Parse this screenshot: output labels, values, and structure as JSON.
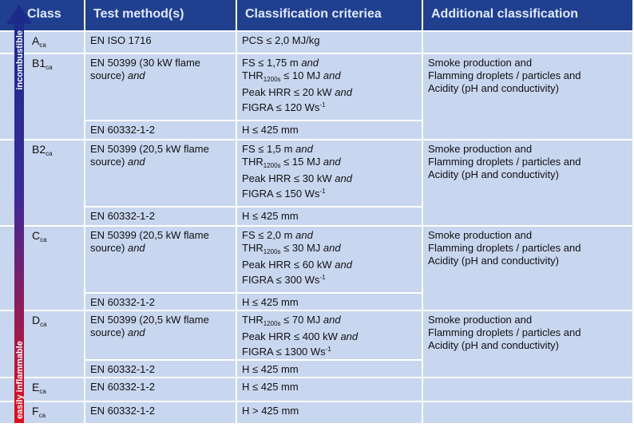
{
  "header": {
    "class": "Class",
    "test_method": "Test method(s)",
    "criteria": "Classification criteriea",
    "additional": "Additional classification"
  },
  "scale": {
    "top": "incombustible",
    "bottom": "easily inflammable"
  },
  "rows": [
    {
      "class": [
        {
          "text": "A"
        },
        {
          "sub": "ca"
        }
      ],
      "tests": [
        {
          "method": [
            [
              {
                "text": "EN ISO 1716"
              }
            ]
          ],
          "criteria": [
            [
              {
                "text": "PCS ≤ 2,0 MJ/kg"
              }
            ]
          ]
        }
      ],
      "additional": []
    },
    {
      "class": [
        {
          "text": "B1"
        },
        {
          "sub": "ca"
        }
      ],
      "tests": [
        {
          "method": [
            [
              {
                "text": "EN 50399 (30 kW flame"
              }
            ],
            [
              {
                "text": "source) "
              },
              {
                "italic": "and"
              }
            ]
          ],
          "criteria": [
            [
              {
                "text": "FS ≤ 1,75 m "
              },
              {
                "italic": "and"
              }
            ],
            [
              {
                "text": "THR"
              },
              {
                "sub": "1200s"
              },
              {
                "text": " ≤ 10 MJ "
              },
              {
                "italic": "and"
              }
            ],
            [
              {
                "text": "Peak HRR ≤ 20 kW "
              },
              {
                "italic": "and"
              }
            ],
            [
              {
                "text": "FIGRA ≤ 120 Ws"
              },
              {
                "sup": "-1"
              }
            ]
          ]
        },
        {
          "method": [
            [
              {
                "text": "EN 60332-1-2"
              }
            ]
          ],
          "criteria": [
            [
              {
                "text": "H ≤ 425 mm"
              }
            ]
          ]
        }
      ],
      "additional": [
        [
          {
            "text": "Smoke production and"
          }
        ],
        [
          {
            "text": "Flamming droplets / particles and"
          }
        ],
        [
          {
            "text": "Acidity (pH and conductivity)"
          }
        ]
      ]
    },
    {
      "class": [
        {
          "text": "B2"
        },
        {
          "sub": "ca"
        }
      ],
      "tests": [
        {
          "method": [
            [
              {
                "text": "EN 50399 (20,5 kW flame"
              }
            ],
            [
              {
                "text": "source) "
              },
              {
                "italic": "and"
              }
            ]
          ],
          "criteria": [
            [
              {
                "text": "FS ≤ 1,5 m "
              },
              {
                "italic": "and"
              }
            ],
            [
              {
                "text": "THR"
              },
              {
                "sub": "1200s"
              },
              {
                "text": " ≤ 15 MJ "
              },
              {
                "italic": "and"
              }
            ],
            [
              {
                "text": "Peak HRR ≤ 30 kW "
              },
              {
                "italic": "and"
              }
            ],
            [
              {
                "text": "FIGRA ≤ 150 Ws"
              },
              {
                "sup": "-1"
              }
            ]
          ]
        },
        {
          "method": [
            [
              {
                "text": "EN 60332-1-2"
              }
            ]
          ],
          "criteria": [
            [
              {
                "text": "H ≤ 425 mm"
              }
            ]
          ]
        }
      ],
      "additional": [
        [
          {
            "text": "Smoke production and"
          }
        ],
        [
          {
            "text": "Flamming droplets / particles and"
          }
        ],
        [
          {
            "text": "Acidity (pH and conductivity)"
          }
        ]
      ]
    },
    {
      "class": [
        {
          "text": "C"
        },
        {
          "sub": "ca"
        }
      ],
      "tests": [
        {
          "method": [
            [
              {
                "text": "EN 50399 (20,5 kW flame"
              }
            ],
            [
              {
                "text": "source) "
              },
              {
                "italic": "and"
              }
            ]
          ],
          "criteria": [
            [
              {
                "text": "FS ≤ 2,0 m "
              },
              {
                "italic": "and"
              }
            ],
            [
              {
                "text": "THR"
              },
              {
                "sub": "1200s"
              },
              {
                "text": " ≤ 30 MJ "
              },
              {
                "italic": "and"
              }
            ],
            [
              {
                "text": "Peak HRR ≤ 60 kW "
              },
              {
                "italic": "and"
              }
            ],
            [
              {
                "text": "FIGRA ≤ 300 Ws"
              },
              {
                "sup": "-1"
              }
            ]
          ]
        },
        {
          "method": [
            [
              {
                "text": "EN 60332-1-2"
              }
            ]
          ],
          "criteria": [
            [
              {
                "text": "H ≤ 425 mm"
              }
            ]
          ]
        }
      ],
      "additional": [
        [
          {
            "text": "Smoke production and"
          }
        ],
        [
          {
            "text": "Flamming droplets / particles and"
          }
        ],
        [
          {
            "text": "Acidity (pH and conductivity)"
          }
        ]
      ]
    },
    {
      "class": [
        {
          "text": "D"
        },
        {
          "sub": "ca"
        }
      ],
      "tests": [
        {
          "method": [
            [
              {
                "text": "EN 50399 (20,5 kW flame"
              }
            ],
            [
              {
                "text": "source) "
              },
              {
                "italic": "and"
              }
            ]
          ],
          "criteria": [
            [
              {
                "text": "THR"
              },
              {
                "sub": "1200s"
              },
              {
                "text": " ≤ 70 MJ "
              },
              {
                "italic": "and"
              }
            ],
            [
              {
                "text": "Peak HRR ≤ 400 kW "
              },
              {
                "italic": "and"
              }
            ],
            [
              {
                "text": "FIGRA ≤ 1300 Ws"
              },
              {
                "sup": "-1"
              }
            ]
          ]
        },
        {
          "method": [
            [
              {
                "text": "EN 60332-1-2"
              }
            ]
          ],
          "criteria": [
            [
              {
                "text": "H ≤ 425 mm"
              }
            ]
          ]
        }
      ],
      "additional": [
        [
          {
            "text": "Smoke production and"
          }
        ],
        [
          {
            "text": "Flamming droplets / particles and"
          }
        ],
        [
          {
            "text": "Acidity (pH and conductivity)"
          }
        ]
      ]
    },
    {
      "class": [
        {
          "text": "E"
        },
        {
          "sub": "ca"
        }
      ],
      "tests": [
        {
          "method": [
            [
              {
                "text": "EN 60332-1-2"
              }
            ]
          ],
          "criteria": [
            [
              {
                "text": "H ≤ 425 mm"
              }
            ]
          ]
        }
      ],
      "additional": []
    },
    {
      "class": [
        {
          "text": "F"
        },
        {
          "sub": "ca"
        }
      ],
      "tests": [
        {
          "method": [
            [
              {
                "text": "EN 60332-1-2"
              }
            ]
          ],
          "criteria": [
            [
              {
                "text": "H > 425 mm"
              }
            ]
          ]
        }
      ],
      "additional": []
    }
  ]
}
